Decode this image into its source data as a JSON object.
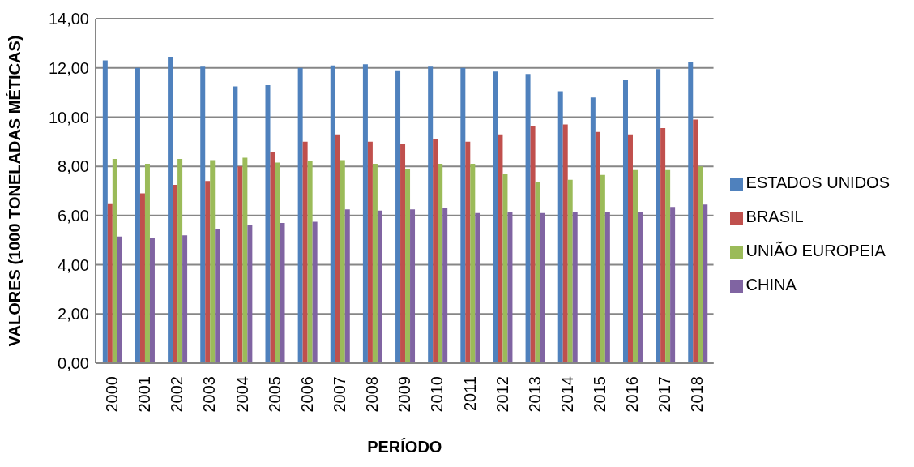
{
  "chart_data": {
    "type": "bar",
    "xlabel": "PERÍODO",
    "ylabel": "VALORES (1000 TONELADAS MÉTICAS)",
    "categories": [
      "2000",
      "2001",
      "2002",
      "2003",
      "2004",
      "2005",
      "2006",
      "2007",
      "2008",
      "2009",
      "2010",
      "2011",
      "2012",
      "2013",
      "2014",
      "2015",
      "2016",
      "2017",
      "2018"
    ],
    "series": [
      {
        "name": "ESTADOS UNIDOS",
        "color": "#4f81bd",
        "values": [
          12.3,
          12.0,
          12.45,
          12.05,
          11.25,
          11.3,
          12.0,
          12.1,
          12.15,
          11.9,
          12.05,
          12.0,
          11.85,
          11.75,
          11.05,
          10.8,
          11.5,
          11.95,
          12.25
        ]
      },
      {
        "name": "BRASIL",
        "color": "#c0504d",
        "values": [
          6.5,
          6.9,
          7.25,
          7.4,
          8.0,
          8.6,
          9.0,
          9.3,
          9.0,
          8.9,
          9.1,
          9.0,
          9.3,
          9.65,
          9.7,
          9.4,
          9.3,
          9.55,
          9.9
        ]
      },
      {
        "name": "UNIÃO EUROPEIA",
        "color": "#9bbb59",
        "values": [
          8.3,
          8.1,
          8.3,
          8.25,
          8.35,
          8.15,
          8.2,
          8.25,
          8.1,
          7.9,
          8.1,
          8.1,
          7.7,
          7.35,
          7.45,
          7.65,
          7.85,
          7.85,
          8.0
        ]
      },
      {
        "name": "CHINA",
        "color": "#8064a2",
        "values": [
          5.15,
          5.1,
          5.2,
          5.45,
          5.6,
          5.7,
          5.75,
          6.25,
          6.2,
          6.25,
          6.3,
          6.1,
          6.15,
          6.1,
          6.15,
          6.15,
          6.15,
          6.35,
          6.45
        ]
      }
    ],
    "ylim": [
      0,
      14
    ],
    "yticks": [
      {
        "value": 0,
        "label": "0,00"
      },
      {
        "value": 2,
        "label": "2,00"
      },
      {
        "value": 4,
        "label": "4,00"
      },
      {
        "value": 6,
        "label": "6,00"
      },
      {
        "value": 8,
        "label": "8,00"
      },
      {
        "value": 10,
        "label": "10,00"
      },
      {
        "value": 12,
        "label": "12,00"
      },
      {
        "value": 14,
        "label": "14,00"
      }
    ],
    "grid": "y",
    "legend": "right"
  }
}
